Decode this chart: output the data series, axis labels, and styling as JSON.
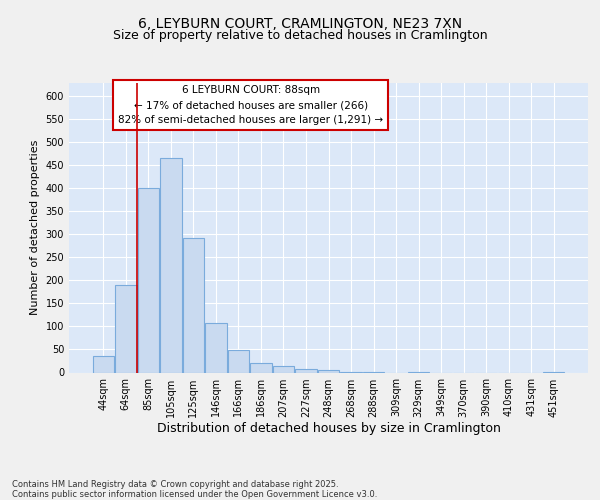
{
  "title1": "6, LEYBURN COURT, CRAMLINGTON, NE23 7XN",
  "title2": "Size of property relative to detached houses in Cramlington",
  "xlabel": "Distribution of detached houses by size in Cramlington",
  "ylabel": "Number of detached properties",
  "footer": "Contains HM Land Registry data © Crown copyright and database right 2025.\nContains public sector information licensed under the Open Government Licence v3.0.",
  "categories": [
    "44sqm",
    "64sqm",
    "85sqm",
    "105sqm",
    "125sqm",
    "146sqm",
    "166sqm",
    "186sqm",
    "207sqm",
    "227sqm",
    "248sqm",
    "268sqm",
    "288sqm",
    "309sqm",
    "329sqm",
    "349sqm",
    "370sqm",
    "390sqm",
    "410sqm",
    "431sqm",
    "451sqm"
  ],
  "values": [
    35,
    190,
    400,
    465,
    293,
    107,
    49,
    20,
    14,
    7,
    6,
    1,
    1,
    0,
    1,
    0,
    0,
    0,
    0,
    0,
    1
  ],
  "bar_color": "#c9daf0",
  "bar_edgecolor": "#7aabdc",
  "red_line_index": 2,
  "annotation_line1": "6 LEYBURN COURT: 88sqm",
  "annotation_line2": "← 17% of detached houses are smaller (266)",
  "annotation_line3": "82% of semi-detached houses are larger (1,291) →",
  "annotation_box_color": "#ffffff",
  "annotation_border_color": "#cc0000",
  "ylim": [
    0,
    630
  ],
  "yticks": [
    0,
    50,
    100,
    150,
    200,
    250,
    300,
    350,
    400,
    450,
    500,
    550,
    600
  ],
  "fig_bg_color": "#f0f0f0",
  "plot_bg": "#dce8f8",
  "grid_color": "#ffffff",
  "title1_fontsize": 10,
  "title2_fontsize": 9,
  "xlabel_fontsize": 9,
  "ylabel_fontsize": 8,
  "tick_fontsize": 7,
  "annotation_fontsize": 7.5,
  "footer_fontsize": 6
}
